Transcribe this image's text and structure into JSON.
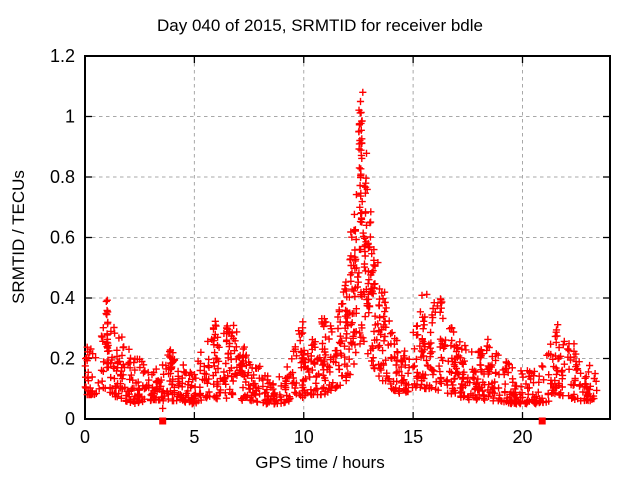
{
  "chart_data": {
    "type": "scatter",
    "title": "Day 040 of 2015, SRMTID for receiver bdle",
    "xlabel": "GPS time / hours",
    "ylabel": "SRMTID / TECUs",
    "xlim": [
      0,
      24
    ],
    "ylim": [
      0,
      1.2
    ],
    "x_ticks": [
      0,
      5,
      10,
      15,
      20
    ],
    "x_tick_labels": [
      "0",
      "5",
      "10",
      "15",
      "20"
    ],
    "y_ticks": [
      0,
      0.2,
      0.4,
      0.6,
      0.8,
      1.0,
      1.2
    ],
    "y_tick_labels": [
      "0",
      "0.2",
      "0.4",
      "0.6",
      "0.8",
      "1",
      "1.2"
    ],
    "grid": {
      "show": true,
      "style": "dashed",
      "color": "#a8a8a8",
      "legend": "none"
    },
    "background": "#ffffff",
    "border_color": "#000000",
    "text_color": "#000000",
    "marker": {
      "shape": "plus",
      "color": "#ff0000",
      "size": 7
    },
    "data_extent_hours": [
      0.0,
      23.4
    ],
    "peak": {
      "x": 12.6,
      "y": 1.07
    },
    "envelope": [
      [
        0.0,
        0.08,
        0.25
      ],
      [
        0.5,
        0.08,
        0.22
      ],
      [
        0.9,
        0.1,
        0.32
      ],
      [
        1.05,
        0.1,
        0.41
      ],
      [
        1.2,
        0.08,
        0.32
      ],
      [
        1.8,
        0.06,
        0.26
      ],
      [
        2.3,
        0.05,
        0.21
      ],
      [
        2.9,
        0.06,
        0.18
      ],
      [
        3.4,
        0.06,
        0.16
      ],
      [
        3.9,
        0.06,
        0.23
      ],
      [
        4.3,
        0.06,
        0.2
      ],
      [
        4.9,
        0.05,
        0.16
      ],
      [
        5.5,
        0.06,
        0.26
      ],
      [
        5.9,
        0.07,
        0.33
      ],
      [
        6.2,
        0.06,
        0.26
      ],
      [
        6.6,
        0.07,
        0.33
      ],
      [
        7.1,
        0.06,
        0.28
      ],
      [
        7.6,
        0.06,
        0.22
      ],
      [
        8.2,
        0.05,
        0.16
      ],
      [
        8.9,
        0.05,
        0.14
      ],
      [
        9.4,
        0.06,
        0.19
      ],
      [
        9.9,
        0.07,
        0.33
      ],
      [
        10.4,
        0.08,
        0.28
      ],
      [
        10.9,
        0.08,
        0.35
      ],
      [
        11.4,
        0.1,
        0.31
      ],
      [
        11.9,
        0.12,
        0.45
      ],
      [
        12.2,
        0.15,
        0.6
      ],
      [
        12.5,
        0.22,
        0.95
      ],
      [
        12.65,
        0.28,
        1.07
      ],
      [
        12.9,
        0.22,
        0.88
      ],
      [
        13.1,
        0.18,
        0.72
      ],
      [
        13.4,
        0.14,
        0.52
      ],
      [
        13.7,
        0.12,
        0.42
      ],
      [
        14.0,
        0.1,
        0.3
      ],
      [
        14.5,
        0.08,
        0.23
      ],
      [
        15.0,
        0.1,
        0.3
      ],
      [
        15.5,
        0.1,
        0.44
      ],
      [
        15.9,
        0.1,
        0.38
      ],
      [
        16.3,
        0.09,
        0.42
      ],
      [
        16.7,
        0.08,
        0.31
      ],
      [
        17.2,
        0.07,
        0.26
      ],
      [
        17.8,
        0.06,
        0.22
      ],
      [
        18.4,
        0.06,
        0.27
      ],
      [
        19.0,
        0.06,
        0.22
      ],
      [
        19.5,
        0.05,
        0.18
      ],
      [
        20.2,
        0.05,
        0.16
      ],
      [
        20.8,
        0.05,
        0.18
      ],
      [
        21.3,
        0.06,
        0.26
      ],
      [
        21.6,
        0.08,
        0.33
      ],
      [
        22.0,
        0.07,
        0.26
      ],
      [
        22.6,
        0.06,
        0.21
      ],
      [
        23.0,
        0.06,
        0.19
      ],
      [
        23.4,
        0.06,
        0.16
      ]
    ],
    "clusters": [
      {
        "x": 1.0,
        "sx": 0.06,
        "y0": 0.26,
        "y1": 0.41,
        "n": 10
      },
      {
        "x": 1.05,
        "sx": 0.05,
        "y0": 0.18,
        "y1": 0.3,
        "n": 7
      },
      {
        "x": 3.95,
        "sx": 0.08,
        "y0": 0.15,
        "y1": 0.23,
        "n": 7
      },
      {
        "x": 5.9,
        "sx": 0.08,
        "y0": 0.18,
        "y1": 0.33,
        "n": 9
      },
      {
        "x": 6.55,
        "sx": 0.08,
        "y0": 0.18,
        "y1": 0.33,
        "n": 9
      },
      {
        "x": 7.2,
        "sx": 0.07,
        "y0": 0.15,
        "y1": 0.28,
        "n": 7
      },
      {
        "x": 9.95,
        "sx": 0.07,
        "y0": 0.16,
        "y1": 0.34,
        "n": 9
      },
      {
        "x": 10.45,
        "sx": 0.08,
        "y0": 0.15,
        "y1": 0.28,
        "n": 7
      },
      {
        "x": 10.9,
        "sx": 0.09,
        "y0": 0.18,
        "y1": 0.35,
        "n": 9
      },
      {
        "x": 11.6,
        "sx": 0.09,
        "y0": 0.18,
        "y1": 0.37,
        "n": 9
      },
      {
        "x": 11.95,
        "sx": 0.07,
        "y0": 0.25,
        "y1": 0.45,
        "n": 9
      },
      {
        "x": 12.15,
        "sx": 0.07,
        "y0": 0.3,
        "y1": 0.62,
        "n": 12
      },
      {
        "x": 12.35,
        "sx": 0.07,
        "y0": 0.35,
        "y1": 0.75,
        "n": 12
      },
      {
        "x": 12.62,
        "sx": 0.06,
        "y0": 0.55,
        "y1": 1.07,
        "n": 26
      },
      {
        "x": 12.55,
        "sx": 0.04,
        "y0": 0.93,
        "y1": 1.03,
        "n": 6
      },
      {
        "x": 12.8,
        "sx": 0.07,
        "y0": 0.4,
        "y1": 0.82,
        "n": 13
      },
      {
        "x": 13.0,
        "sx": 0.07,
        "y0": 0.35,
        "y1": 0.7,
        "n": 11
      },
      {
        "x": 13.2,
        "sx": 0.07,
        "y0": 0.28,
        "y1": 0.58,
        "n": 10
      },
      {
        "x": 13.45,
        "sx": 0.07,
        "y0": 0.22,
        "y1": 0.42,
        "n": 8
      },
      {
        "x": 13.7,
        "sx": 0.07,
        "y0": 0.18,
        "y1": 0.4,
        "n": 7
      },
      {
        "x": 15.5,
        "sx": 0.08,
        "y0": 0.22,
        "y1": 0.44,
        "n": 9
      },
      {
        "x": 15.85,
        "sx": 0.07,
        "y0": 0.2,
        "y1": 0.38,
        "n": 7
      },
      {
        "x": 16.3,
        "sx": 0.06,
        "y0": 0.24,
        "y1": 0.42,
        "n": 8
      },
      {
        "x": 17.0,
        "sx": 0.07,
        "y0": 0.15,
        "y1": 0.28,
        "n": 6
      },
      {
        "x": 18.45,
        "sx": 0.07,
        "y0": 0.15,
        "y1": 0.27,
        "n": 7
      },
      {
        "x": 21.55,
        "sx": 0.06,
        "y0": 0.16,
        "y1": 0.33,
        "n": 8
      },
      {
        "x": 22.4,
        "sx": 0.07,
        "y0": 0.13,
        "y1": 0.25,
        "n": 6
      }
    ],
    "extra_points": [
      [
        3.55,
        0.035
      ],
      [
        12.7,
        1.08
      ]
    ],
    "outlier_squares": [
      [
        3.55,
        0.0
      ],
      [
        20.9,
        0.0
      ]
    ],
    "n_background_points": 1250,
    "seed": 7
  }
}
